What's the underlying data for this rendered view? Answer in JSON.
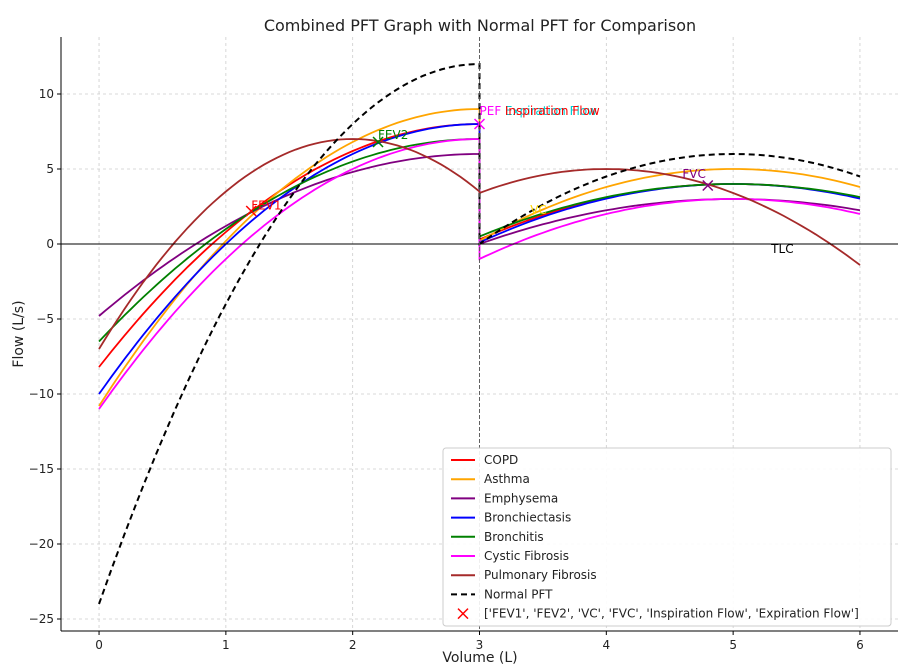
{
  "chart_data": {
    "type": "line",
    "title": "Combined PFT Graph with Normal PFT for Comparison",
    "xlabel": "Volume (L)",
    "ylabel": "Flow (L/s)",
    "xlim": [
      -0.3,
      6.3
    ],
    "ylim": [
      -25.8,
      13.8
    ],
    "x_ticks": [
      0,
      1,
      2,
      3,
      4,
      5,
      6
    ],
    "y_ticks": [
      -25,
      -20,
      -15,
      -10,
      -5,
      0,
      5,
      10
    ],
    "y_tick_labels": [
      "−25",
      "−20",
      "−15",
      "−10",
      "−5",
      "0",
      "5",
      "10"
    ],
    "grid": true,
    "legend_position": "lower-right",
    "series": [
      {
        "name": "COPD",
        "color": "#ff0000",
        "style": "solid",
        "expiration": {
          "start": -8.2,
          "peak": 8.0,
          "end": 8.0
        },
        "inspiration": {
          "start": 0.3,
          "peak": 4.0,
          "end": 3.1
        }
      },
      {
        "name": "Asthma",
        "color": "#ffa500",
        "style": "solid",
        "expiration": {
          "start": -10.8,
          "peak": 9.0,
          "end": 9.0
        },
        "inspiration": {
          "start": 0.2,
          "peak": 5.0,
          "end": 3.7
        }
      },
      {
        "name": "Emphysema",
        "color": "#800080",
        "style": "solid",
        "expiration": {
          "start": -4.8,
          "peak": 6.0,
          "end": 6.0
        },
        "inspiration": {
          "start": 0.0,
          "peak": 3.0,
          "end": 2.3
        }
      },
      {
        "name": "Bronchiectasis",
        "color": "#0000ff",
        "style": "solid",
        "expiration": {
          "start": -10.0,
          "peak": 8.0,
          "end": 8.0
        },
        "inspiration": {
          "start": 0.1,
          "peak": 4.0,
          "end": 3.0
        }
      },
      {
        "name": "Bronchitis",
        "color": "#008000",
        "style": "solid",
        "expiration": {
          "start": -6.5,
          "peak": 7.0,
          "end": 7.0
        },
        "inspiration": {
          "start": 0.5,
          "peak": 4.0,
          "end": 3.1
        }
      },
      {
        "name": "Cystic Fibrosis",
        "color": "#ff00ff",
        "style": "solid",
        "expiration": {
          "start": -11.0,
          "peak": 7.0,
          "end": 7.0
        },
        "inspiration": {
          "start": -1.0,
          "peak": 3.0,
          "end": 2.0
        }
      },
      {
        "name": "Pulmonary Fibrosis",
        "color": "#a52a2a",
        "style": "solid",
        "expiration": {
          "start": -7.0,
          "peak": 7.0,
          "end": 3.6,
          "peak_x": 2.0
        },
        "inspiration": {
          "start": 3.4,
          "peak": 5.0,
          "end": -2.2,
          "peak_x": 4.0
        }
      },
      {
        "name": "Normal PFT",
        "color": "#000000",
        "style": "dashed",
        "expiration": {
          "start": -24.0,
          "peak": 12.0,
          "end": 12.0
        },
        "inspiration": {
          "start": 0.0,
          "peak": 6.0,
          "end": 4.5
        }
      }
    ],
    "marker_legend": "['FEV1', 'FEV2', 'VC', 'FVC', 'Inspiration Flow', 'Expiration Flow']",
    "markers": [
      {
        "x": 1.2,
        "y": 2.2,
        "color": "#ff0000"
      },
      {
        "x": 2.2,
        "y": 6.8,
        "color": "#008000"
      },
      {
        "x": 3.0,
        "y": 8.0,
        "color": "#ff00ff"
      },
      {
        "x": 4.8,
        "y": 3.9,
        "color": "#800080"
      }
    ],
    "annotations": [
      {
        "text": "FEV1",
        "x": 1.2,
        "y": 2.3,
        "color": "#ff0000"
      },
      {
        "text": "FEV2",
        "x": 2.2,
        "y": 7.0,
        "color": "#008000"
      },
      {
        "text": "PEF",
        "x": 3.0,
        "y": 8.6,
        "color": "#ff00ff"
      },
      {
        "text": "Expiration Flow",
        "x": 3.2,
        "y": 8.6,
        "color": "#00ced1"
      },
      {
        "text": "Inspiration Flow",
        "x": 3.2,
        "y": 8.6,
        "color": "#ff0000"
      },
      {
        "text": "VC",
        "x": 3.4,
        "y": 2.0,
        "color": "#ffd700"
      },
      {
        "text": "FVC",
        "x": 4.6,
        "y": 4.4,
        "color": "#800080"
      },
      {
        "text": "TLC",
        "x": 5.3,
        "y": -0.6,
        "color": "#000000"
      }
    ]
  }
}
